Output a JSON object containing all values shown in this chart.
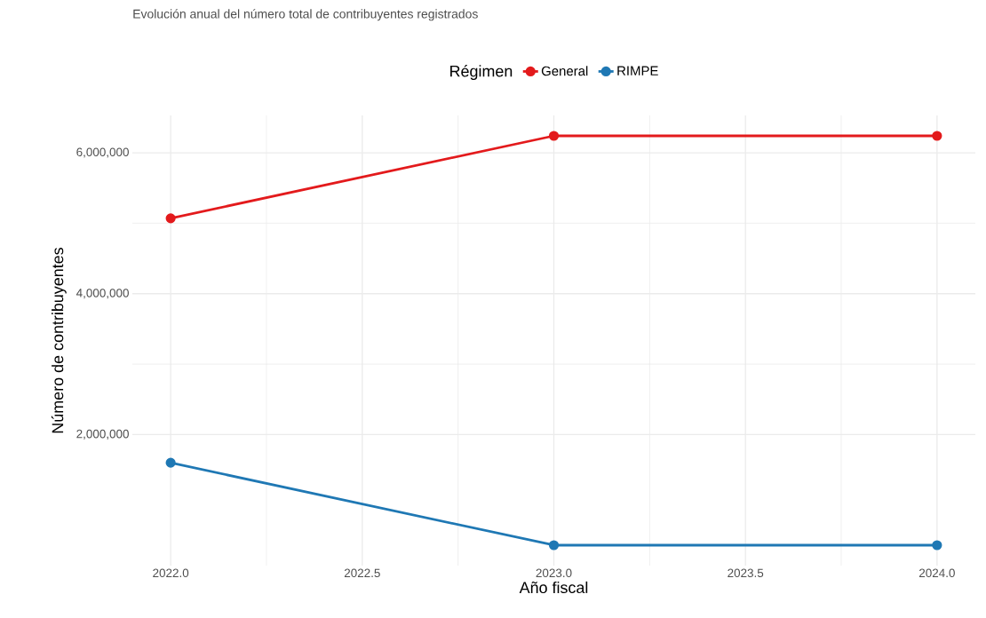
{
  "chart_data": {
    "type": "line",
    "title": "Evolución anual del número total de contribuyentes registrados",
    "xlabel": "Año fiscal",
    "ylabel": "Número de contribuyentes",
    "legend_title": "Régimen",
    "x": [
      2022,
      2023,
      2024
    ],
    "series": [
      {
        "name": "General",
        "color": "#e31a1c",
        "values": [
          5070000,
          6240000,
          6240000
        ]
      },
      {
        "name": "RIMPE",
        "color": "#1f78b4",
        "values": [
          1600000,
          430000,
          430000
        ]
      }
    ],
    "xlim": [
      2021.9,
      2024.1
    ],
    "xticks": [
      {
        "value": 2022,
        "label": "2022.0"
      },
      {
        "value": 2022.5,
        "label": "2022.5"
      },
      {
        "value": 2023,
        "label": "2023.0"
      },
      {
        "value": 2023.5,
        "label": "2023.5"
      },
      {
        "value": 2024,
        "label": "2024.0"
      }
    ],
    "ylim": [
      140000,
      6530000
    ],
    "yticks": [
      {
        "value": 2000000,
        "label": "2,000,000"
      },
      {
        "value": 4000000,
        "label": "4,000,000"
      },
      {
        "value": 6000000,
        "label": "6,000,000"
      }
    ],
    "grid": true,
    "legend": "top",
    "marker": "circle",
    "line_style": "solid"
  }
}
